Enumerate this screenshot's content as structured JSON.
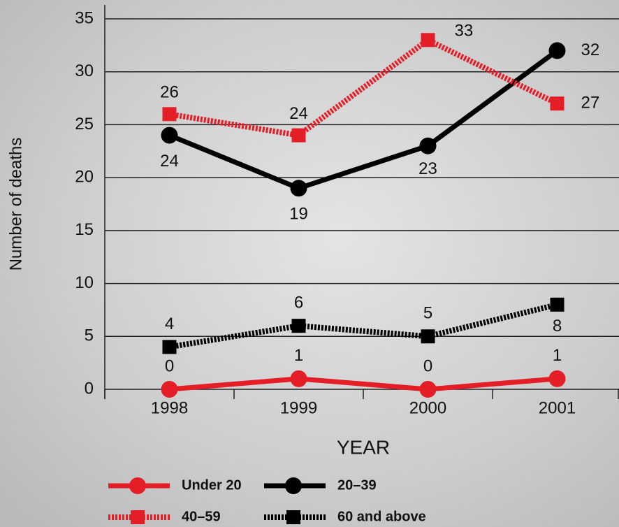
{
  "chart_data": {
    "type": "line",
    "y_label": "Number of deaths",
    "x_label": "YEAR",
    "categories": [
      "1998",
      "1999",
      "2000",
      "2001"
    ],
    "series": [
      {
        "name": "Under 20",
        "color": "#e31e26",
        "line_style": "solid",
        "marker": "circle",
        "values": [
          0,
          1,
          0,
          1
        ]
      },
      {
        "name": "20–39",
        "color": "#000000",
        "line_style": "solid",
        "marker": "circle",
        "values": [
          24,
          19,
          23,
          32
        ]
      },
      {
        "name": "40–59",
        "color": "#e31e26",
        "line_style": "dotted",
        "marker": "square",
        "values": [
          26,
          24,
          33,
          27
        ]
      },
      {
        "name": "60 and above",
        "color": "#000000",
        "line_style": "dotted",
        "marker": "square",
        "values": [
          4,
          6,
          5,
          8
        ]
      }
    ],
    "ylim": [
      0,
      35
    ],
    "yticks": [
      0,
      5,
      10,
      15,
      20,
      25,
      30,
      35
    ],
    "grid": true
  }
}
